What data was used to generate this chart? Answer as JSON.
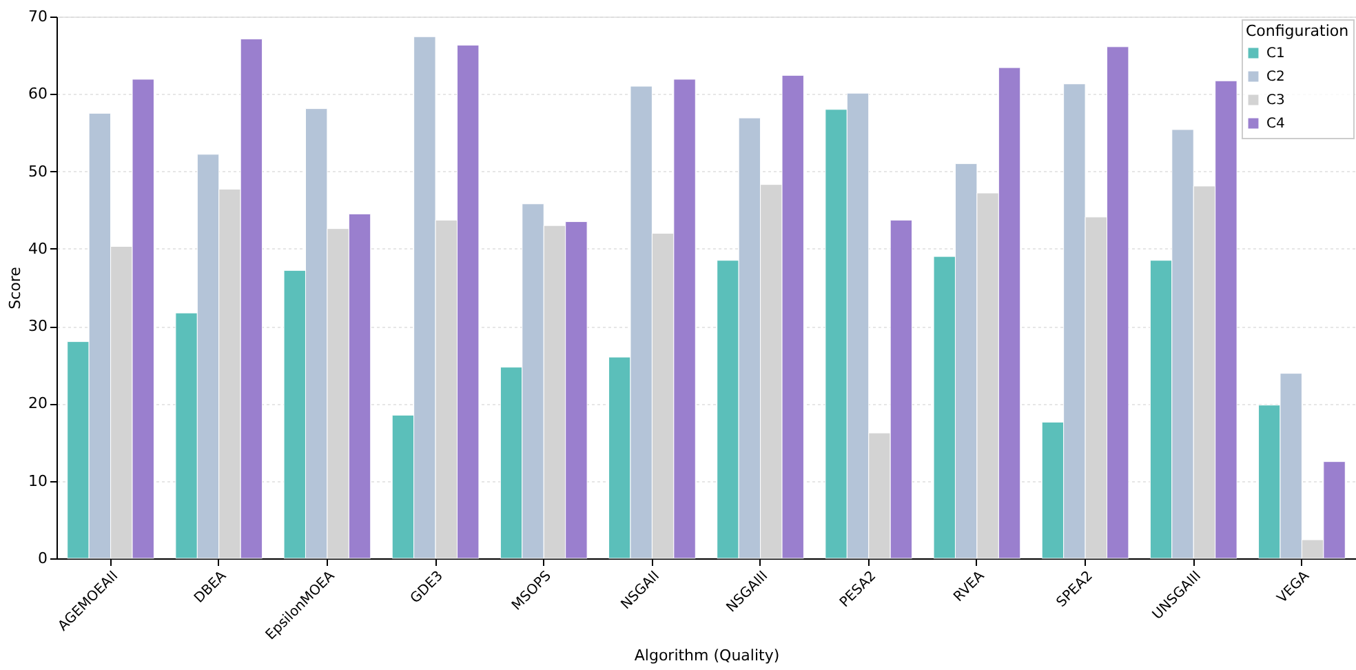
{
  "chart_data": {
    "type": "bar",
    "xlabel": "Algorithm (Quality)",
    "ylabel": "Score",
    "legend_title": "Configuration",
    "categories": [
      "AGEMOEAII",
      "DBEA",
      "EpsilonMOEA",
      "GDE3",
      "MSOPS",
      "NSGAII",
      "NSGAIII",
      "PESA2",
      "RVEA",
      "SPEA2",
      "UNSGAIII",
      "VEGA"
    ],
    "series": [
      {
        "name": "C1",
        "color": "#5bbfba",
        "values": [
          28.0,
          31.7,
          37.2,
          18.5,
          24.7,
          26.0,
          38.5,
          58.0,
          39.0,
          17.6,
          38.5,
          19.8
        ]
      },
      {
        "name": "C2",
        "color": "#b4c4d8",
        "values": [
          57.5,
          52.2,
          58.1,
          67.4,
          45.8,
          61.0,
          56.9,
          60.1,
          51.0,
          61.3,
          55.4,
          23.9
        ]
      },
      {
        "name": "C3",
        "color": "#d3d3d3",
        "values": [
          40.3,
          47.7,
          42.6,
          43.7,
          43.0,
          42.0,
          48.3,
          16.2,
          47.2,
          44.1,
          48.1,
          2.4
        ]
      },
      {
        "name": "C4",
        "color": "#9a7fce",
        "values": [
          61.9,
          67.1,
          44.5,
          66.3,
          43.5,
          61.9,
          62.4,
          43.7,
          63.4,
          66.1,
          61.7,
          12.5
        ]
      }
    ],
    "ylim": [
      0,
      70
    ],
    "yticks": [
      0,
      10,
      20,
      30,
      40,
      50,
      60,
      70
    ],
    "grid": "y",
    "legend": "top right"
  }
}
